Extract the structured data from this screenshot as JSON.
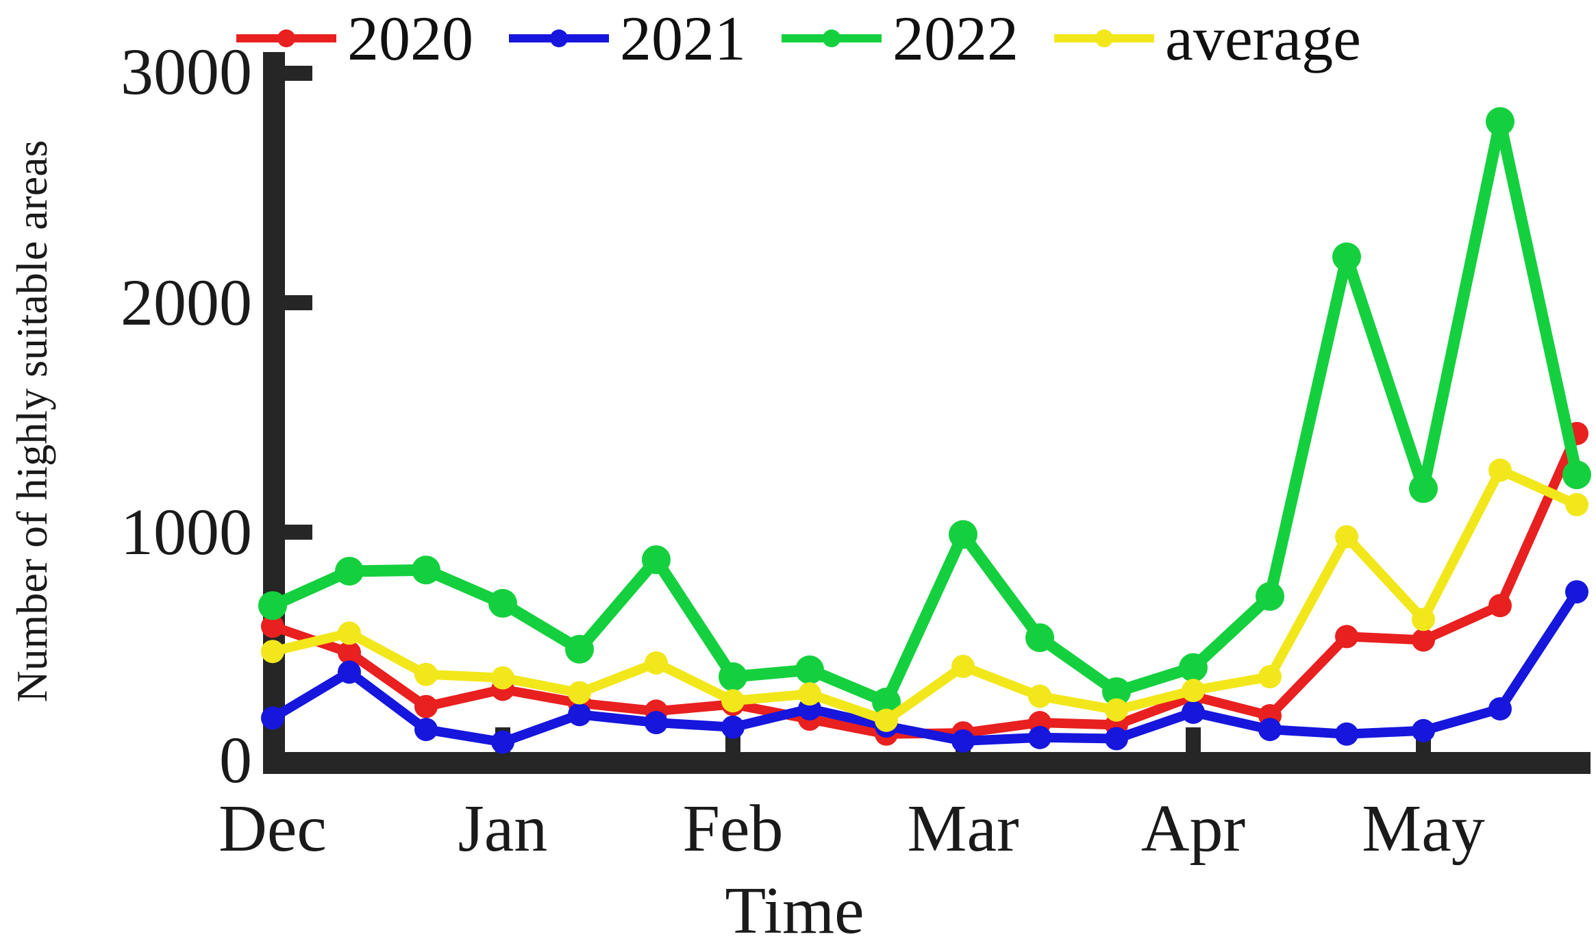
{
  "chart_data": {
    "type": "line",
    "title": "",
    "xlabel": "Time",
    "ylabel": "Number of highly suitable areas",
    "categories": [
      "Dec",
      "Jan",
      "Feb",
      "Mar",
      "Apr",
      "May"
    ],
    "points_per_month": 3,
    "x_sampling": "three points per month (approx. every 10 days), Dec through May",
    "yticks": [
      "0",
      "1000",
      "2000",
      "3000"
    ],
    "ylim": [
      0,
      3000
    ],
    "grid": false,
    "legend_position": "top",
    "background": "#ffffff",
    "axis_color": "#262626",
    "series": [
      {
        "name": "2020",
        "color": "#e8201f",
        "values": [
          590,
          475,
          240,
          315,
          255,
          220,
          250,
          185,
          120,
          125,
          170,
          160,
          285,
          200,
          545,
          530,
          680,
          1430
        ]
      },
      {
        "name": "2021",
        "color": "#1616dd",
        "values": [
          190,
          390,
          140,
          85,
          205,
          170,
          150,
          230,
          155,
          90,
          105,
          100,
          215,
          140,
          120,
          135,
          230,
          740
        ]
      },
      {
        "name": "2022",
        "color": "#15d03e",
        "values": [
          680,
          830,
          835,
          690,
          490,
          880,
          370,
          400,
          260,
          990,
          540,
          305,
          410,
          720,
          2200,
          1190,
          2790,
          1250
        ]
      },
      {
        "name": "average",
        "color": "#f2e71b",
        "values": [
          480,
          560,
          380,
          365,
          300,
          430,
          265,
          295,
          180,
          415,
          285,
          225,
          310,
          370,
          980,
          620,
          1270,
          1120
        ]
      }
    ]
  }
}
